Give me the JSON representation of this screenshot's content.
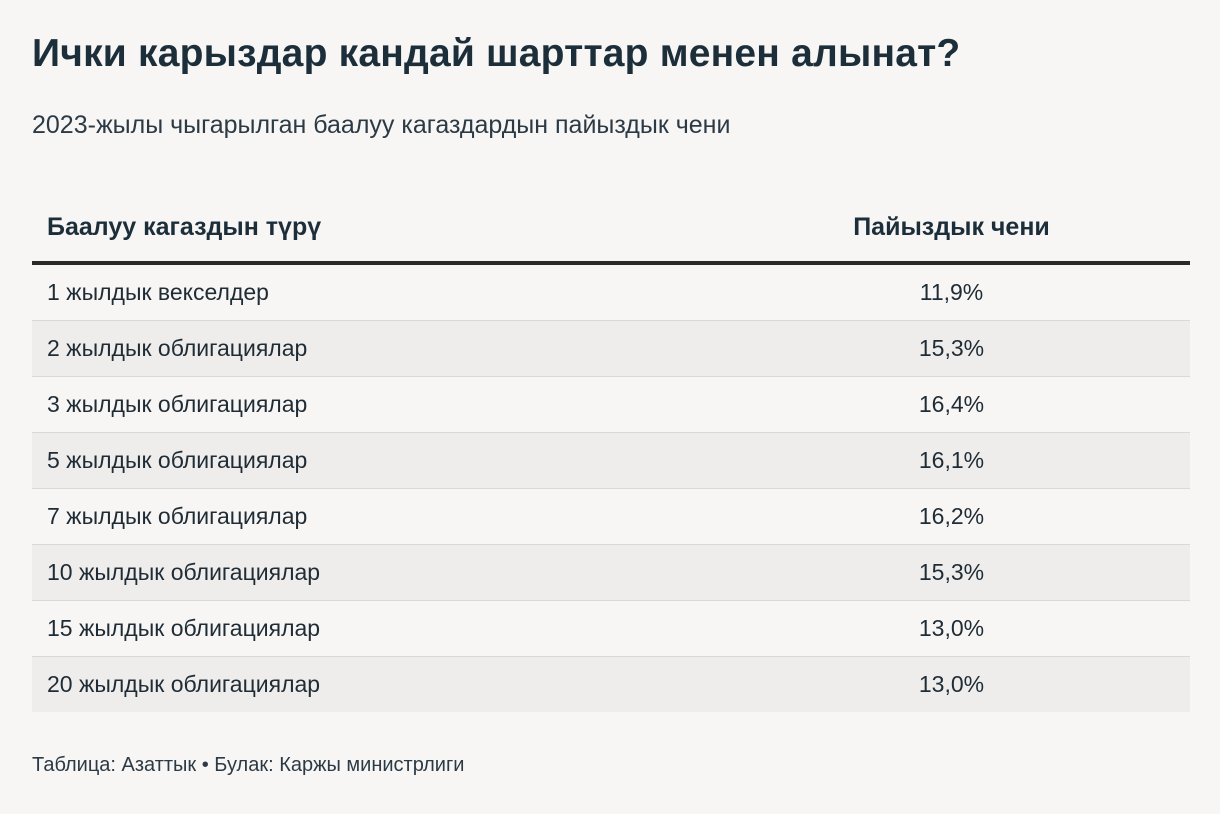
{
  "title": "Ички карыздар кандай шарттар менен алынат?",
  "subtitle": "2023-жылы чыгарылган баалуу кагаздардын пайыздык чени",
  "table": {
    "headers": [
      "Баалуу кагаздын түрү",
      "Пайыздык чени"
    ],
    "rows": [
      [
        "1 жылдык векселдер",
        "11,9%"
      ],
      [
        "2 жылдык облигациялар",
        "15,3%"
      ],
      [
        "3 жылдык облигациялар",
        "16,4%"
      ],
      [
        "5 жылдык облигациялар",
        "16,1%"
      ],
      [
        "7 жылдык облигациялар",
        "16,2%"
      ],
      [
        "10 жылдык облигациялар",
        "15,3%"
      ],
      [
        "15 жылдык облигациялар",
        "13,0%"
      ],
      [
        "20 жылдык облигациялар",
        "13,0%"
      ]
    ]
  },
  "footer": {
    "source": "Таблица: Азаттык • Булак: Каржы министрлиги"
  },
  "chart_data": {
    "type": "table",
    "title": "Ички карыздар кандай шарттар менен алынат?",
    "subtitle": "2023-жылы чыгарылган баалуу кагаздардын пайыздык чени",
    "columns": [
      "Баалуу кагаздын түрү",
      "Пайыздык чени"
    ],
    "categories": [
      "1 жылдык векселдер",
      "2 жылдык облигациялар",
      "3 жылдык облигациялар",
      "5 жылдык облигациялар",
      "7 жылдык облигациялар",
      "10 жылдык облигациялар",
      "15 жылдык облигациялар",
      "20 жылдык облигациялар"
    ],
    "values": [
      11.9,
      15.3,
      16.4,
      16.1,
      16.2,
      15.3,
      13.0,
      13.0
    ]
  }
}
